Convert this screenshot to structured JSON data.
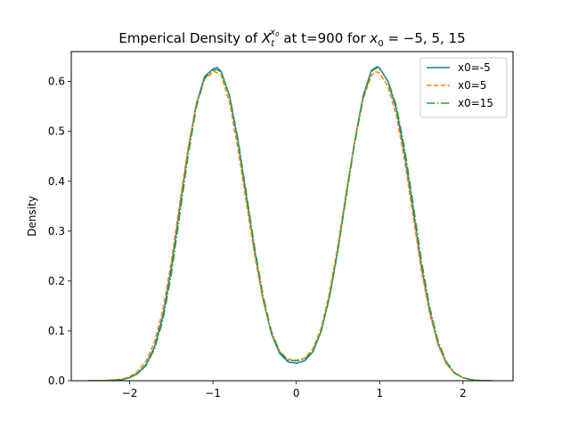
{
  "chart_data": {
    "type": "line",
    "title_prefix": "Emperical Density of ",
    "title_var": "X",
    "title_sub": "t",
    "title_sup": "x",
    "title_sup_sub": "0",
    "title_mid": " at t=900 for ",
    "title_x0": "x",
    "title_x0_sub": "0",
    "title_suffix": " = −5, 5, 15",
    "xlabel": "",
    "ylabel": "Density",
    "xlim": [
      -2.7,
      2.6
    ],
    "ylim": [
      0,
      0.66
    ],
    "x_ticks": [
      -2,
      -1,
      0,
      1,
      2
    ],
    "x_tick_labels": [
      "−2",
      "−1",
      "0",
      "1",
      "2"
    ],
    "y_ticks": [
      0.0,
      0.1,
      0.2,
      0.3,
      0.4,
      0.5,
      0.6
    ],
    "y_tick_labels": [
      "0.0",
      "0.1",
      "0.2",
      "0.3",
      "0.4",
      "0.5",
      "0.6"
    ],
    "grid": false,
    "legend_position": "top-right",
    "series": [
      {
        "name": "x0=-5",
        "color": "#1f77b4",
        "dash": "solid",
        "x": [
          -2.5,
          -2.3,
          -2.1,
          -2.0,
          -1.9,
          -1.8,
          -1.7,
          -1.6,
          -1.5,
          -1.4,
          -1.3,
          -1.2,
          -1.1,
          -1.0,
          -0.95,
          -0.9,
          -0.8,
          -0.7,
          -0.6,
          -0.5,
          -0.4,
          -0.3,
          -0.2,
          -0.1,
          0.0,
          0.1,
          0.2,
          0.3,
          0.4,
          0.5,
          0.6,
          0.7,
          0.8,
          0.9,
          0.97,
          1.0,
          1.1,
          1.2,
          1.3,
          1.4,
          1.5,
          1.6,
          1.7,
          1.8,
          1.9,
          2.0,
          2.1,
          2.2,
          2.35
        ],
        "y": [
          0.0,
          0.0002,
          0.002,
          0.006,
          0.015,
          0.033,
          0.068,
          0.13,
          0.225,
          0.345,
          0.46,
          0.555,
          0.61,
          0.625,
          0.628,
          0.62,
          0.57,
          0.48,
          0.37,
          0.26,
          0.165,
          0.095,
          0.055,
          0.038,
          0.035,
          0.04,
          0.058,
          0.1,
          0.17,
          0.265,
          0.375,
          0.48,
          0.57,
          0.622,
          0.63,
          0.627,
          0.6,
          0.545,
          0.455,
          0.345,
          0.23,
          0.14,
          0.075,
          0.035,
          0.015,
          0.006,
          0.002,
          0.0005,
          0.0
        ]
      },
      {
        "name": "x0=5",
        "color": "#ff7f0e",
        "dash": "dashed",
        "x": [
          -2.5,
          -2.3,
          -2.1,
          -2.0,
          -1.9,
          -1.8,
          -1.7,
          -1.6,
          -1.5,
          -1.4,
          -1.3,
          -1.2,
          -1.1,
          -1.0,
          -0.98,
          -0.9,
          -0.8,
          -0.7,
          -0.6,
          -0.5,
          -0.4,
          -0.3,
          -0.2,
          -0.1,
          0.0,
          0.1,
          0.2,
          0.3,
          0.4,
          0.5,
          0.6,
          0.7,
          0.8,
          0.9,
          0.95,
          1.0,
          1.1,
          1.2,
          1.3,
          1.4,
          1.5,
          1.6,
          1.7,
          1.8,
          1.9,
          2.0,
          2.1,
          2.2,
          2.35
        ],
        "y": [
          0.0,
          0.0003,
          0.003,
          0.008,
          0.019,
          0.04,
          0.078,
          0.142,
          0.238,
          0.355,
          0.465,
          0.555,
          0.605,
          0.618,
          0.62,
          0.612,
          0.558,
          0.465,
          0.358,
          0.252,
          0.162,
          0.097,
          0.059,
          0.043,
          0.041,
          0.045,
          0.064,
          0.106,
          0.178,
          0.272,
          0.38,
          0.48,
          0.565,
          0.612,
          0.62,
          0.617,
          0.59,
          0.532,
          0.442,
          0.332,
          0.222,
          0.135,
          0.072,
          0.034,
          0.015,
          0.006,
          0.002,
          0.0005,
          0.0
        ]
      },
      {
        "name": "x0=15",
        "color": "#2ca02c",
        "dash": "dashdot",
        "x": [
          -2.5,
          -2.3,
          -2.1,
          -2.0,
          -1.9,
          -1.8,
          -1.7,
          -1.6,
          -1.5,
          -1.4,
          -1.3,
          -1.2,
          -1.1,
          -1.0,
          -0.95,
          -0.9,
          -0.8,
          -0.7,
          -0.6,
          -0.5,
          -0.4,
          -0.3,
          -0.2,
          -0.1,
          0.0,
          0.1,
          0.2,
          0.3,
          0.4,
          0.5,
          0.6,
          0.7,
          0.8,
          0.9,
          0.97,
          1.0,
          1.1,
          1.2,
          1.3,
          1.4,
          1.5,
          1.6,
          1.7,
          1.8,
          1.9,
          2.0,
          2.1,
          2.2,
          2.35
        ],
        "y": [
          0.0,
          0.0002,
          0.002,
          0.006,
          0.014,
          0.031,
          0.064,
          0.122,
          0.212,
          0.33,
          0.448,
          0.548,
          0.607,
          0.622,
          0.624,
          0.618,
          0.572,
          0.485,
          0.378,
          0.268,
          0.172,
          0.1,
          0.058,
          0.041,
          0.04,
          0.043,
          0.06,
          0.1,
          0.168,
          0.262,
          0.37,
          0.475,
          0.565,
          0.62,
          0.628,
          0.625,
          0.602,
          0.552,
          0.465,
          0.357,
          0.242,
          0.148,
          0.08,
          0.038,
          0.016,
          0.006,
          0.002,
          0.0005,
          0.0
        ]
      }
    ]
  }
}
